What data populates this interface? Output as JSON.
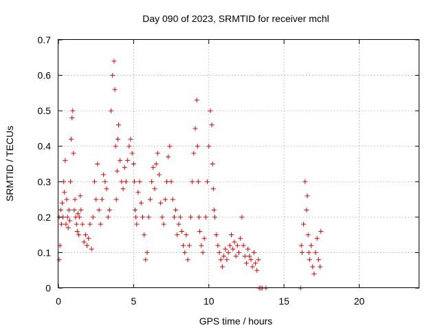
{
  "chart_data": {
    "type": "scatter",
    "title": "Day 090 of 2023, SRMTID for receiver mchl",
    "xlabel": "GPS time / hours",
    "ylabel": "SRMTID / TECUs",
    "xlim": [
      0,
      24
    ],
    "ylim": [
      0,
      0.7
    ],
    "xticks": [
      0,
      5,
      10,
      15,
      20
    ],
    "xtick_labels": [
      "0",
      "5",
      "10",
      "15",
      "20"
    ],
    "yticks": [
      0,
      0.1,
      0.2,
      0.3,
      0.4,
      0.5,
      0.6,
      0.7
    ],
    "ytick_labels": [
      "0",
      "0.1",
      "0.2",
      "0.3",
      "0.4",
      "0.5",
      "0.6",
      "0.7"
    ],
    "grid": true,
    "marker": "plus",
    "marker_color": "#e00000",
    "series": [
      {
        "name": "SRMTID",
        "x": [
          0.05,
          0.05,
          0.1,
          0.15,
          0.2,
          0.25,
          0.3,
          0.35,
          0.4,
          0.45,
          0.5,
          0.55,
          0.6,
          0.65,
          0.7,
          0.75,
          0.8,
          0.85,
          0.9,
          0.95,
          1.0,
          1.05,
          1.1,
          1.15,
          1.2,
          1.25,
          1.3,
          1.35,
          1.4,
          1.45,
          1.5,
          1.6,
          1.7,
          1.8,
          1.9,
          2.0,
          2.1,
          2.2,
          2.3,
          2.4,
          2.5,
          2.6,
          2.7,
          2.8,
          2.9,
          3.0,
          3.1,
          3.2,
          3.3,
          3.4,
          3.5,
          3.6,
          3.7,
          3.75,
          3.8,
          3.85,
          3.9,
          3.95,
          4.0,
          4.1,
          4.2,
          4.3,
          4.4,
          4.5,
          4.6,
          4.7,
          4.8,
          4.9,
          5.0,
          5.05,
          5.1,
          5.15,
          5.2,
          5.3,
          5.4,
          5.5,
          5.6,
          5.7,
          5.8,
          5.9,
          6.0,
          6.1,
          6.2,
          6.3,
          6.4,
          6.5,
          6.6,
          6.7,
          6.8,
          6.9,
          7.0,
          7.1,
          7.2,
          7.3,
          7.4,
          7.5,
          7.6,
          7.7,
          7.8,
          7.9,
          8.0,
          8.1,
          8.2,
          8.3,
          8.4,
          8.5,
          8.6,
          8.7,
          8.8,
          8.9,
          9.0,
          9.1,
          9.2,
          9.25,
          9.3,
          9.35,
          9.4,
          9.5,
          9.6,
          9.7,
          9.8,
          9.9,
          10.0,
          10.1,
          10.2,
          10.25,
          10.3,
          10.35,
          10.4,
          10.5,
          10.6,
          10.7,
          10.8,
          10.9,
          11.0,
          11.1,
          11.2,
          11.3,
          11.4,
          11.5,
          11.6,
          11.7,
          11.8,
          11.9,
          12.0,
          12.1,
          12.2,
          12.3,
          12.4,
          12.5,
          12.6,
          12.7,
          12.8,
          12.9,
          13.0,
          13.1,
          13.2,
          13.3,
          13.35,
          13.45,
          13.55,
          13.8,
          16.1,
          16.15,
          16.2,
          16.3,
          16.4,
          16.5,
          16.55,
          16.6,
          16.65,
          16.7,
          16.8,
          16.9,
          17.0,
          17.1,
          17.2,
          17.3,
          17.4,
          17.45
        ],
        "y": [
          0.08,
          0.2,
          0.12,
          0.22,
          0.18,
          0.24,
          0.2,
          0.3,
          0.27,
          0.36,
          0.18,
          0.25,
          0.2,
          0.17,
          0.22,
          0.19,
          0.3,
          0.42,
          0.48,
          0.5,
          0.38,
          0.22,
          0.25,
          0.2,
          0.18,
          0.16,
          0.21,
          0.15,
          0.2,
          0.26,
          0.22,
          0.18,
          0.13,
          0.15,
          0.12,
          0.14,
          0.18,
          0.11,
          0.2,
          0.3,
          0.25,
          0.35,
          0.22,
          0.18,
          0.25,
          0.32,
          0.3,
          0.28,
          0.2,
          0.22,
          0.5,
          0.6,
          0.64,
          0.56,
          0.4,
          0.25,
          0.33,
          0.42,
          0.46,
          0.36,
          0.3,
          0.28,
          0.34,
          0.3,
          0.36,
          0.4,
          0.42,
          0.38,
          0.35,
          0.3,
          0.22,
          0.2,
          0.18,
          0.27,
          0.3,
          0.24,
          0.2,
          0.15,
          0.08,
          0.1,
          0.2,
          0.25,
          0.3,
          0.34,
          0.28,
          0.35,
          0.38,
          0.32,
          0.24,
          0.2,
          0.18,
          0.25,
          0.3,
          0.37,
          0.4,
          0.3,
          0.25,
          0.2,
          0.22,
          0.15,
          0.18,
          0.2,
          0.16,
          0.12,
          0.1,
          0.15,
          0.08,
          0.12,
          0.2,
          0.3,
          0.38,
          0.45,
          0.53,
          0.4,
          0.3,
          0.2,
          0.16,
          0.12,
          0.1,
          0.14,
          0.2,
          0.3,
          0.4,
          0.5,
          0.46,
          0.35,
          0.28,
          0.22,
          0.2,
          0.15,
          0.12,
          0.1,
          0.08,
          0.06,
          0.09,
          0.11,
          0.08,
          0.1,
          0.12,
          0.15,
          0.11,
          0.13,
          0.09,
          0.12,
          0.1,
          0.14,
          0.2,
          0.12,
          0.09,
          0.07,
          0.11,
          0.09,
          0.08,
          0.06,
          0.1,
          0.07,
          0.05,
          0.08,
          0.0,
          0.0,
          0.0,
          0.0,
          0.0,
          0.12,
          0.1,
          0.18,
          0.3,
          0.22,
          0.26,
          0.15,
          0.1,
          0.08,
          0.12,
          0.06,
          0.04,
          0.1,
          0.14,
          0.08,
          0.06,
          0.16
        ]
      }
    ]
  }
}
